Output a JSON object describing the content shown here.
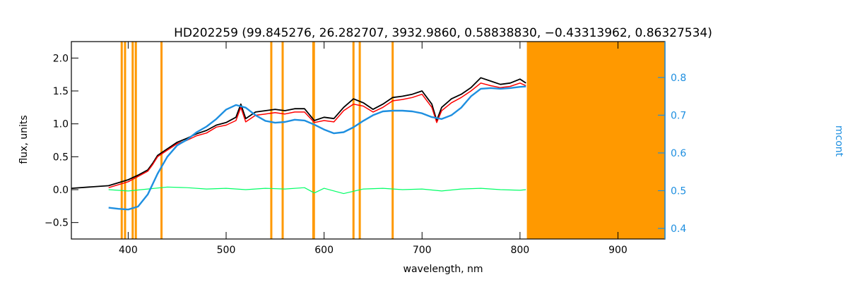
{
  "chart_data": {
    "type": "line",
    "title": "HD202259   (99.845276, 26.282707, 3932.9860, 0.58838830, −0.43313962, 0.86327534)",
    "xlabel": "wavelength, nm",
    "ylabel": "flux, units",
    "y2label": "mcont",
    "xlim": [
      342,
      948
    ],
    "ylim": [
      -0.75,
      2.25
    ],
    "y2lim": [
      0.372,
      0.895
    ],
    "xticks": [
      "400",
      "500",
      "600",
      "700",
      "800",
      "900"
    ],
    "yticks": [
      "−0.5",
      "0.0",
      "0.5",
      "1.0",
      "1.5",
      "2.0"
    ],
    "y2ticks": [
      "0.4",
      "0.5",
      "0.6",
      "0.7",
      "0.8"
    ],
    "masked_lines_nm": [
      393.4,
      396.8,
      404.6,
      407.8,
      434.0,
      546.1,
      557.7,
      589.0,
      589.6,
      630.0,
      636.4,
      670.0
    ],
    "masked_region_nm": [
      807,
      948
    ],
    "colors": {
      "observed": "#000000",
      "model": "#ff0000",
      "residual": "#00ff66",
      "continuum": "#1e8fe0",
      "mask": "#ff9900"
    },
    "series": [
      {
        "key": "observed",
        "x": [
          342,
          360,
          380,
          400,
          410,
          420,
          425,
          430,
          440,
          450,
          460,
          470,
          480,
          490,
          500,
          510,
          515,
          520,
          530,
          540,
          550,
          560,
          570,
          580,
          590,
          600,
          610,
          620,
          630,
          640,
          650,
          660,
          670,
          680,
          690,
          700,
          710,
          715,
          720,
          730,
          740,
          750,
          760,
          770,
          780,
          790,
          800,
          806
        ],
        "y": [
          0.02,
          0.04,
          0.06,
          0.15,
          0.22,
          0.3,
          0.4,
          0.52,
          0.62,
          0.72,
          0.78,
          0.85,
          0.9,
          0.98,
          1.02,
          1.1,
          1.3,
          1.08,
          1.18,
          1.2,
          1.22,
          1.2,
          1.23,
          1.23,
          1.05,
          1.1,
          1.08,
          1.25,
          1.38,
          1.32,
          1.22,
          1.3,
          1.4,
          1.42,
          1.45,
          1.5,
          1.3,
          1.05,
          1.25,
          1.38,
          1.45,
          1.55,
          1.7,
          1.65,
          1.6,
          1.62,
          1.68,
          1.62
        ]
      },
      {
        "key": "model",
        "x": [
          380,
          400,
          410,
          420,
          425,
          430,
          440,
          450,
          460,
          470,
          480,
          490,
          500,
          510,
          515,
          520,
          530,
          540,
          550,
          560,
          570,
          580,
          590,
          600,
          610,
          620,
          630,
          640,
          650,
          660,
          670,
          680,
          690,
          700,
          710,
          715,
          720,
          730,
          740,
          750,
          760,
          770,
          780,
          790,
          800,
          806
        ],
        "y": [
          0.03,
          0.12,
          0.2,
          0.28,
          0.38,
          0.5,
          0.6,
          0.7,
          0.75,
          0.82,
          0.86,
          0.95,
          0.98,
          1.05,
          1.25,
          1.03,
          1.13,
          1.15,
          1.17,
          1.15,
          1.18,
          1.18,
          1.02,
          1.05,
          1.03,
          1.2,
          1.3,
          1.27,
          1.18,
          1.25,
          1.35,
          1.37,
          1.4,
          1.45,
          1.25,
          1.02,
          1.2,
          1.32,
          1.4,
          1.5,
          1.62,
          1.58,
          1.55,
          1.57,
          1.62,
          1.58
        ]
      },
      {
        "key": "residual",
        "x": [
          380,
          400,
          420,
          440,
          460,
          480,
          500,
          520,
          540,
          560,
          580,
          590,
          600,
          620,
          640,
          660,
          680,
          700,
          720,
          740,
          760,
          780,
          800,
          806
        ],
        "y": [
          0.0,
          -0.02,
          0.01,
          0.04,
          0.03,
          0.01,
          0.02,
          0.0,
          0.02,
          0.01,
          0.03,
          -0.05,
          0.02,
          -0.06,
          0.01,
          0.02,
          0.0,
          0.01,
          -0.02,
          0.01,
          0.02,
          0.0,
          -0.01,
          0.0
        ]
      },
      {
        "key": "continuum",
        "axis": "right",
        "x": [
          380,
          390,
          400,
          410,
          420,
          430,
          440,
          450,
          460,
          470,
          480,
          490,
          500,
          510,
          520,
          530,
          540,
          550,
          560,
          570,
          580,
          590,
          600,
          610,
          620,
          630,
          640,
          650,
          660,
          670,
          680,
          690,
          700,
          710,
          720,
          730,
          740,
          750,
          760,
          770,
          780,
          790,
          800,
          806
        ],
        "y": [
          0.455,
          0.452,
          0.45,
          0.458,
          0.49,
          0.545,
          0.59,
          0.62,
          0.635,
          0.655,
          0.67,
          0.69,
          0.715,
          0.727,
          0.72,
          0.7,
          0.685,
          0.68,
          0.682,
          0.688,
          0.686,
          0.675,
          0.662,
          0.652,
          0.655,
          0.668,
          0.685,
          0.7,
          0.71,
          0.712,
          0.712,
          0.71,
          0.705,
          0.695,
          0.69,
          0.7,
          0.72,
          0.75,
          0.77,
          0.772,
          0.77,
          0.772,
          0.775,
          0.776
        ]
      }
    ]
  }
}
